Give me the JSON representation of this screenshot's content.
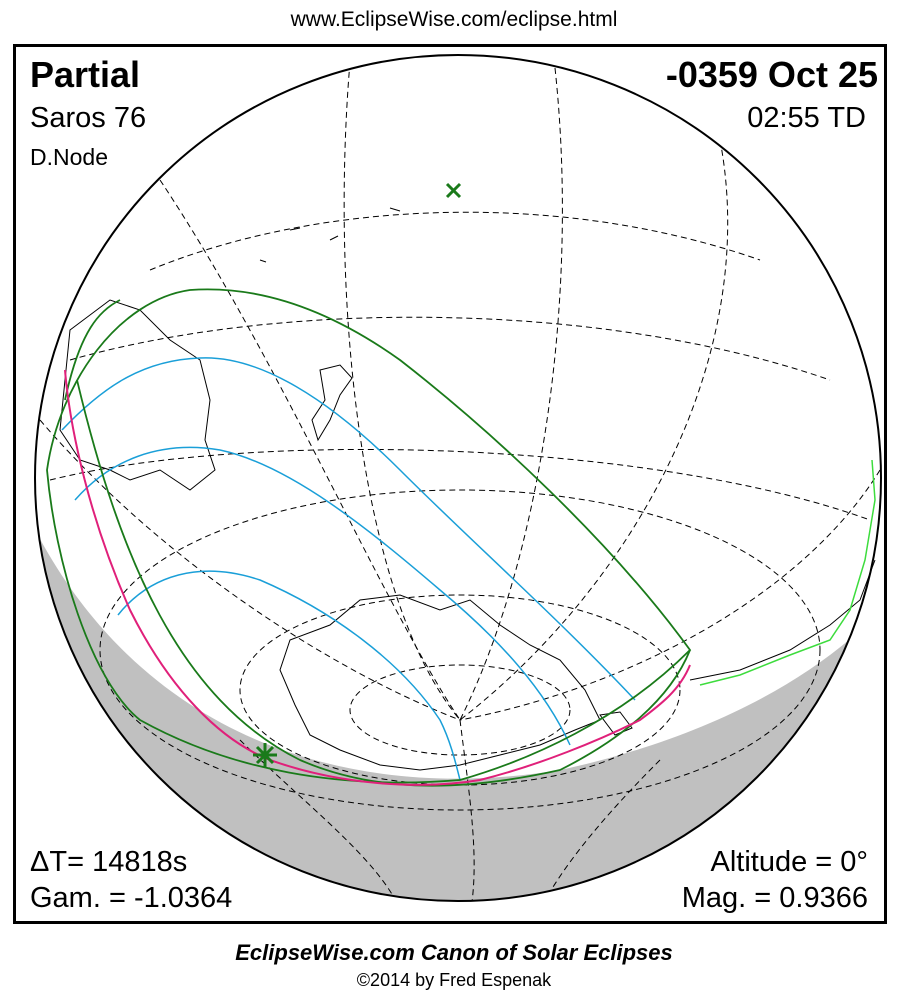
{
  "header": {
    "url": "www.EclipseWise.com/eclipse.html"
  },
  "eclipse": {
    "type": "Partial",
    "date": "-0359 Oct 25",
    "saros": "Saros  76",
    "time": "02:55 TD",
    "node": "D.Node",
    "delta_t": "ΔT=  14818s",
    "altitude": "Altitude =  0°",
    "gamma": "Gam. = -1.0364",
    "magnitude": "Mag. = 0.9366"
  },
  "footer": {
    "title": "EclipseWise.com Canon of Solar Eclipses",
    "copyright": "©2014 by Fred Espenak"
  },
  "colors": {
    "night_shade": "#c0c0c0",
    "penumbra_limits": "#1a7a1a",
    "magnitude_contours": "#1a9fd8",
    "rise_set_curve": "#e0207a",
    "coastline": "#000000",
    "terminator_coast": "#3ddc3d",
    "markers": "#1a7a1a"
  },
  "markers": {
    "sub_solar_point": "x-marker-icon",
    "greatest_eclipse": "star-marker-icon"
  }
}
